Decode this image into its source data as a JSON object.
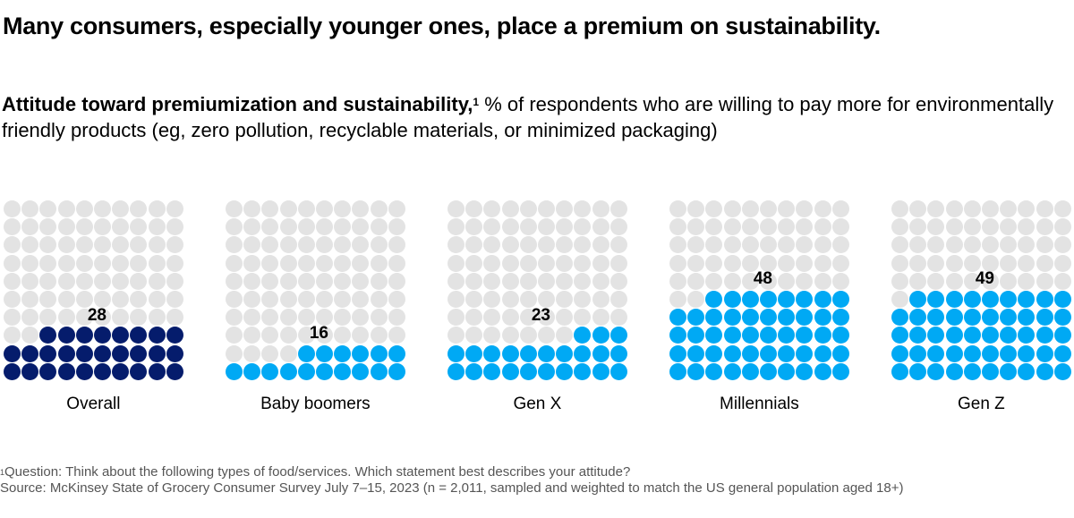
{
  "chart_data": {
    "type": "waffle",
    "title": "Many consumers, especially younger ones, place a premium on sustainability.",
    "subtitle_bold": "Attitude toward premiumization and sustainability,",
    "subtitle_sup": "1",
    "subtitle_rest": " % of respondents who are willing to pay more for environmentally friendly products (eg, zero pollution, recyclable materials, or minimized packaging)",
    "grid": {
      "rows": 10,
      "cols": 10,
      "fill_from": "bottom-right"
    },
    "colors": {
      "empty": "#e3e3e3",
      "overall": "#051c6c",
      "generation": "#00a9f4"
    },
    "categories": [
      "Overall",
      "Baby boomers",
      "Gen X",
      "Millennials",
      "Gen Z"
    ],
    "values": [
      28,
      16,
      23,
      48,
      49
    ],
    "footnotes": [
      {
        "sup": "1",
        "text": "Question: Think about the following types of food/services. Which statement best describes your attitude?"
      },
      {
        "sup": "",
        "text": " Source: McKinsey State of Grocery Consumer Survey July 7–15, 2023 (n = 2,011, sampled and weighted to match the US general population aged 18+)"
      }
    ]
  }
}
